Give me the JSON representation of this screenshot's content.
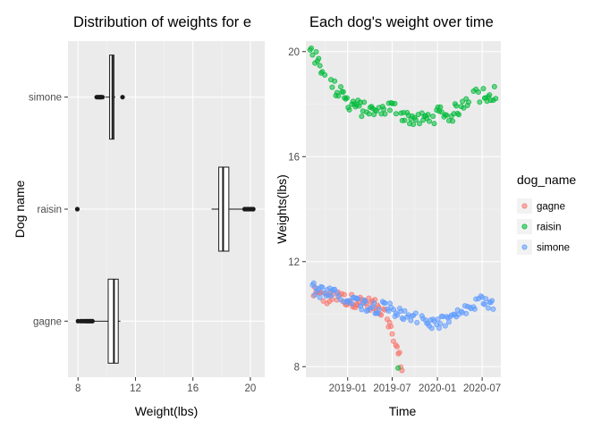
{
  "chart_data": [
    {
      "type": "boxplot",
      "orientation": "horizontal",
      "title": "Distribution of weights for e",
      "xlabel": "Weight(lbs)",
      "ylabel": "Dog name",
      "xlim": [
        7.3,
        21.0
      ],
      "xticks": [
        "8",
        "12",
        "16",
        "20"
      ],
      "xtick_values": [
        8,
        12,
        16,
        20
      ],
      "categories": [
        "gagne",
        "raisin",
        "simone"
      ],
      "boxes": [
        {
          "name": "gagne",
          "whisker_low": 9.1,
          "q1": 10.1,
          "median": 10.5,
          "q3": 10.8,
          "whisker_high": 10.95,
          "outliers": [
            8.0,
            8.2,
            8.35,
            8.5,
            8.6,
            8.7,
            8.8,
            8.9,
            9.0
          ]
        },
        {
          "name": "raisin",
          "whisker_low": 17.3,
          "q1": 17.8,
          "median": 18.1,
          "q3": 18.5,
          "whisker_high": 19.5,
          "outliers": [
            7.95,
            19.6,
            19.75,
            19.9,
            20.05,
            20.2
          ]
        },
        {
          "name": "simone",
          "whisker_low": 9.9,
          "q1": 10.2,
          "median": 10.4,
          "q3": 10.5,
          "whisker_high": 10.6,
          "outliers": [
            9.3,
            9.4,
            9.5,
            9.55,
            9.6,
            9.7,
            11.1
          ]
        }
      ],
      "grid": true
    },
    {
      "type": "scatter",
      "title": "Each dog's weight over time",
      "xlabel": "Time",
      "ylabel": "Weights(lbs)",
      "xlim": [
        "2018-07-15",
        "2020-09-15"
      ],
      "ylim": [
        7.6,
        20.4
      ],
      "xticks": [
        "2019-01",
        "2019-07",
        "2020-01",
        "2020-07"
      ],
      "xtick_values": [
        "2019-01-01",
        "2019-07-01",
        "2020-01-01",
        "2020-07-01"
      ],
      "yticks": [
        "8",
        "12",
        "16",
        "20"
      ],
      "ytick_values": [
        8,
        12,
        16,
        20
      ],
      "legend": {
        "title": "dog_name",
        "placement": "right"
      },
      "series": [
        {
          "name": "gagne",
          "color": "#f8766d",
          "anchors": [
            [
              "2018-08-15",
              10.8
            ],
            [
              "2018-10-01",
              10.6
            ],
            [
              "2018-12-01",
              10.6
            ],
            [
              "2019-02-01",
              10.5
            ],
            [
              "2019-04-01",
              10.4
            ],
            [
              "2019-05-15",
              10.2
            ],
            [
              "2019-06-15",
              9.8
            ],
            [
              "2019-07-01",
              9.2
            ],
            [
              "2019-07-20",
              8.7
            ],
            [
              "2019-08-10",
              8.0
            ]
          ],
          "spread": 0.25
        },
        {
          "name": "raisin",
          "color": "#00ba38",
          "anchors": [
            [
              "2018-08-01",
              20.1
            ],
            [
              "2018-09-15",
              19.4
            ],
            [
              "2018-11-01",
              18.7
            ],
            [
              "2019-01-01",
              18.1
            ],
            [
              "2019-03-01",
              17.8
            ],
            [
              "2019-05-01",
              17.7
            ],
            [
              "2019-07-01",
              17.9
            ],
            [
              "2019-09-01",
              17.5
            ],
            [
              "2019-11-01",
              17.4
            ],
            [
              "2020-01-01",
              17.6
            ],
            [
              "2020-03-01",
              17.6
            ],
            [
              "2020-05-01",
              18.2
            ],
            [
              "2020-07-01",
              18.4
            ],
            [
              "2020-08-25",
              18.4
            ]
          ],
          "spread": 0.3,
          "extra_points": [
            [
              "2019-07-25",
              7.95
            ]
          ]
        },
        {
          "name": "simone",
          "color": "#619cff",
          "anchors": [
            [
              "2018-08-01",
              11.0
            ],
            [
              "2018-10-01",
              10.8
            ],
            [
              "2019-01-01",
              10.6
            ],
            [
              "2019-04-01",
              10.3
            ],
            [
              "2019-07-01",
              10.2
            ],
            [
              "2019-10-01",
              9.8
            ],
            [
              "2020-01-01",
              9.6
            ],
            [
              "2020-04-01",
              10.0
            ],
            [
              "2020-07-01",
              10.5
            ],
            [
              "2020-08-25",
              10.2
            ]
          ],
          "spread": 0.25
        }
      ],
      "grid": true
    }
  ]
}
